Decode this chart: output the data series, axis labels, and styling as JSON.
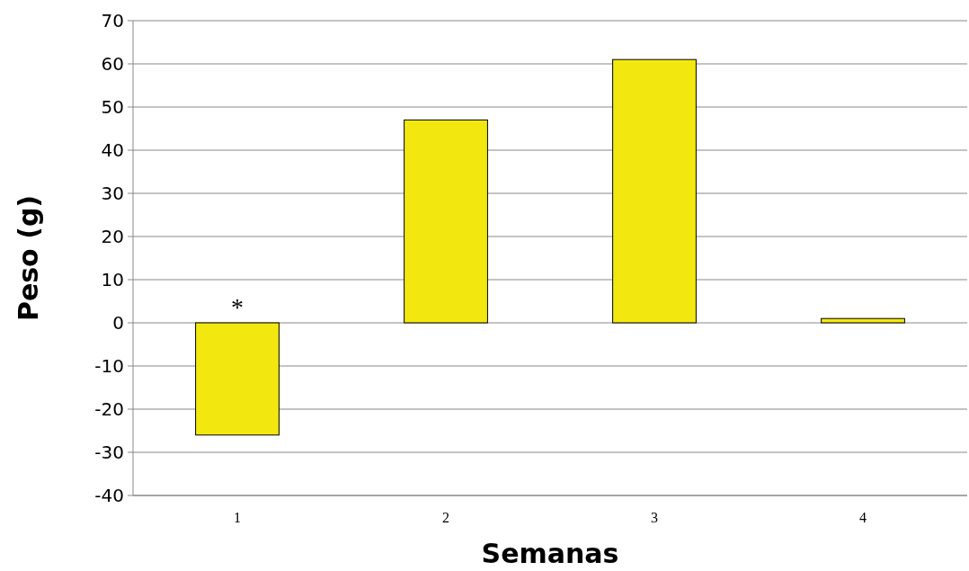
{
  "chart_data": {
    "type": "bar",
    "xlabel": "Semanas",
    "ylabel": "Peso (g)",
    "categories": [
      "1",
      "2",
      "3",
      "4"
    ],
    "values": [
      -26,
      47,
      61,
      1
    ],
    "color": "#f2e80f",
    "ylim": [
      -40,
      70
    ],
    "yticks": [
      -40,
      -30,
      -20,
      -10,
      0,
      10,
      20,
      30,
      40,
      50,
      60,
      70
    ],
    "grid": "y",
    "annotations": [
      "*"
    ]
  }
}
